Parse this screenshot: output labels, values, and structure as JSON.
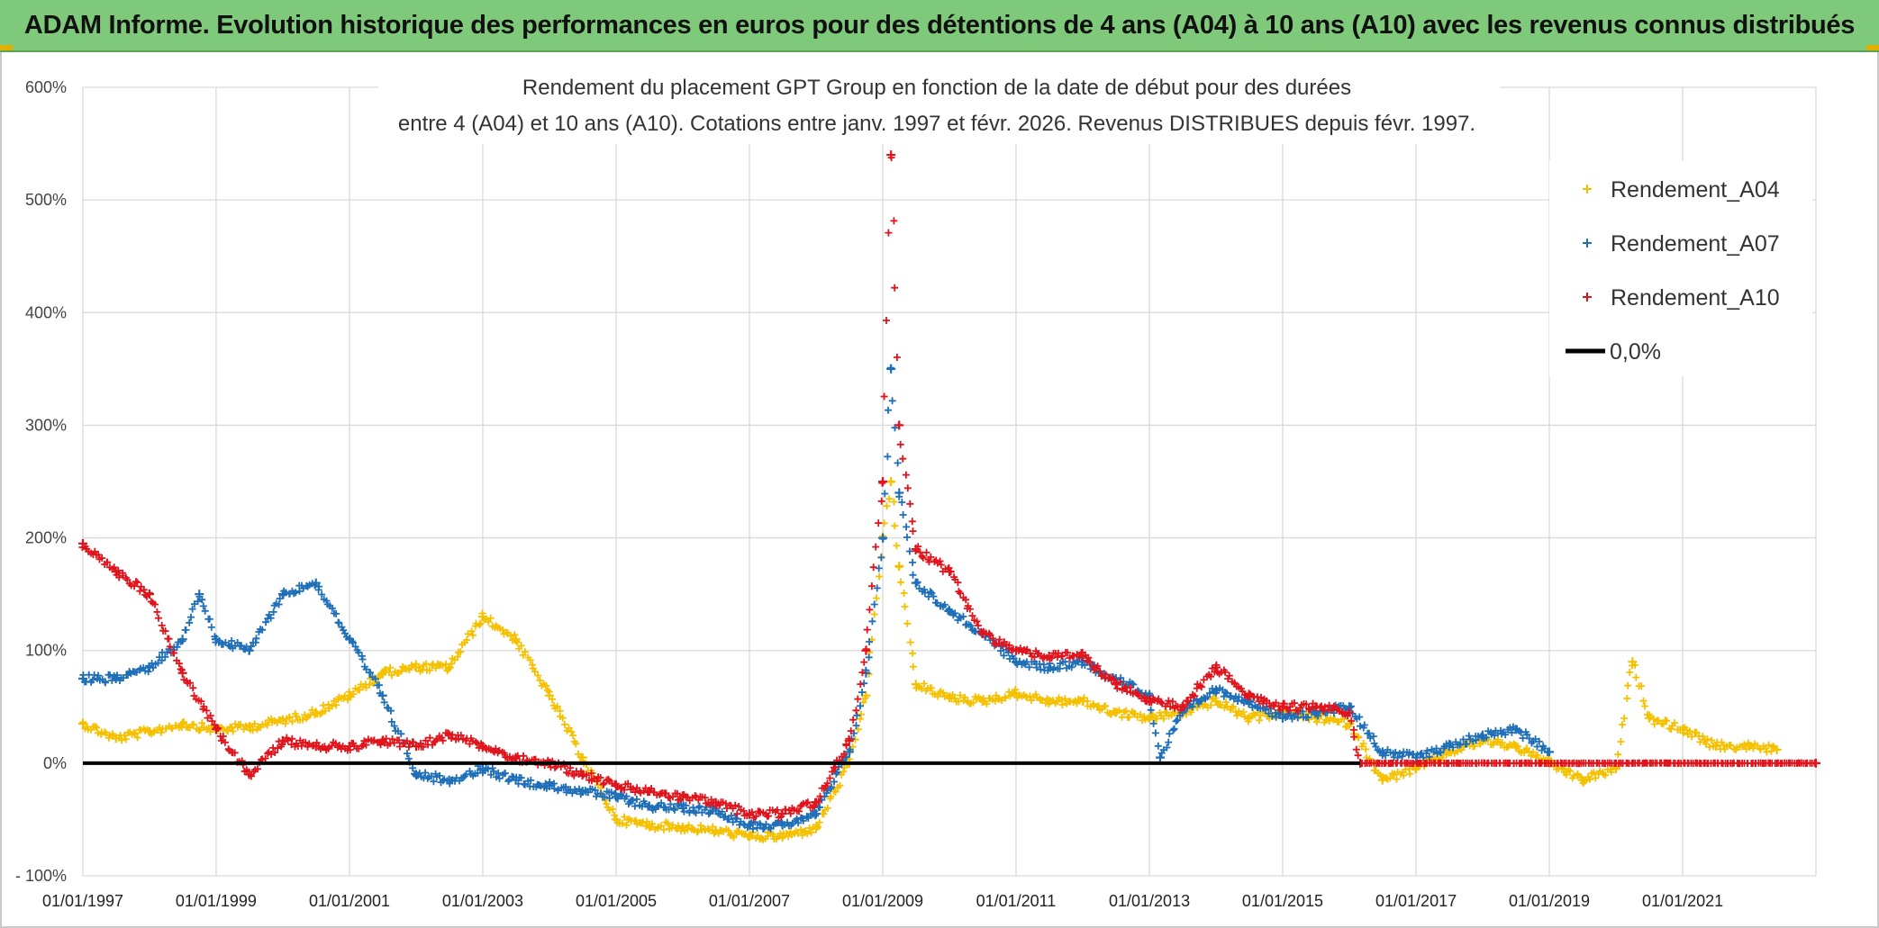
{
  "banner": {
    "text": "ADAM Informe. Evolution historique des performances en euros pour des détentions de 4 ans (A04) à 10 ans (A10) avec les revenus connus distribués"
  },
  "colors": {
    "A04": "#f5c000",
    "A07": "#1f6fb8",
    "A10": "#e0141c",
    "zero": "#000000",
    "grid": "#d9d9d9",
    "banner": "#7fc97a"
  },
  "chart_data": {
    "type": "scatter",
    "title_line1": "Rendement du placement GPT Group en fonction de la date de début pour des durées",
    "title_line2": "entre 4 (A04) et 10 ans (A10). Cotations entre janv. 1997 et févr. 2026. Revenus DISTRIBUES depuis févr. 1997.",
    "ylim": [
      -100,
      600
    ],
    "yticks": [
      -100,
      0,
      100,
      200,
      300,
      400,
      500,
      600
    ],
    "ytick_labels": [
      "- 100%",
      "0%",
      "100%",
      "200%",
      "300%",
      "400%",
      "500%",
      "600%"
    ],
    "xlim": [
      "1997-01-01",
      "2023-01-01"
    ],
    "xticks": [
      "1997-01-01",
      "1999-01-01",
      "2001-01-01",
      "2003-01-01",
      "2005-01-01",
      "2007-01-01",
      "2009-01-01",
      "2011-01-01",
      "2013-01-01",
      "2015-01-01",
      "2017-01-01",
      "2019-01-01",
      "2021-01-01"
    ],
    "xtick_labels": [
      "01/01/1997",
      "01/01/1999",
      "01/01/2001",
      "01/01/2003",
      "01/01/2005",
      "01/01/2007",
      "01/01/2009",
      "01/01/2011",
      "01/01/2013",
      "01/01/2015",
      "01/01/2017",
      "01/01/2019",
      "01/01/2021"
    ],
    "legend_position": "top-right",
    "grid": true,
    "series": [
      {
        "name": "Rendement_A04",
        "color": "#f5c000",
        "points": [
          [
            "1997-01-01",
            35
          ],
          [
            "1997-07-01",
            22
          ],
          [
            "1998-01-01",
            28
          ],
          [
            "1998-07-01",
            35
          ],
          [
            "1999-01-01",
            30
          ],
          [
            "1999-07-01",
            32
          ],
          [
            "2000-01-01",
            38
          ],
          [
            "2000-07-01",
            45
          ],
          [
            "2001-01-01",
            60
          ],
          [
            "2001-07-01",
            80
          ],
          [
            "2002-01-01",
            85
          ],
          [
            "2002-07-01",
            85
          ],
          [
            "2003-01-01",
            130
          ],
          [
            "2003-07-01",
            110
          ],
          [
            "2004-01-01",
            60
          ],
          [
            "2004-07-01",
            5
          ],
          [
            "2005-01-01",
            -50
          ],
          [
            "2005-07-01",
            -55
          ],
          [
            "2006-01-01",
            -57
          ],
          [
            "2006-07-01",
            -60
          ],
          [
            "2007-01-01",
            -65
          ],
          [
            "2007-07-01",
            -65
          ],
          [
            "2008-01-01",
            -58
          ],
          [
            "2008-07-01",
            0
          ],
          [
            "2008-10-01",
            60
          ],
          [
            "2009-01-01",
            200
          ],
          [
            "2009-02-15",
            250
          ],
          [
            "2009-04-01",
            175
          ],
          [
            "2009-07-01",
            70
          ],
          [
            "2010-01-01",
            58
          ],
          [
            "2010-07-01",
            55
          ],
          [
            "2011-01-01",
            62
          ],
          [
            "2011-07-01",
            55
          ],
          [
            "2012-01-01",
            55
          ],
          [
            "2012-07-01",
            45
          ],
          [
            "2013-01-01",
            40
          ],
          [
            "2013-07-01",
            45
          ],
          [
            "2014-01-01",
            55
          ],
          [
            "2014-07-01",
            40
          ],
          [
            "2015-01-01",
            45
          ],
          [
            "2015-07-01",
            40
          ],
          [
            "2016-01-01",
            35
          ],
          [
            "2016-07-01",
            -15
          ],
          [
            "2017-01-01",
            -5
          ],
          [
            "2017-07-01",
            10
          ],
          [
            "2018-01-01",
            20
          ],
          [
            "2018-07-01",
            15
          ],
          [
            "2019-01-01",
            0
          ],
          [
            "2019-07-01",
            -15
          ],
          [
            "2020-01-01",
            -5
          ],
          [
            "2020-04-01",
            90
          ],
          [
            "2020-07-01",
            40
          ],
          [
            "2021-01-01",
            30
          ],
          [
            "2021-07-01",
            15
          ],
          [
            "2022-01-01",
            15
          ],
          [
            "2022-06-01",
            12
          ]
        ]
      },
      {
        "name": "Rendement_A07",
        "color": "#1f6fb8",
        "points": [
          [
            "1997-01-01",
            75
          ],
          [
            "1997-07-01",
            75
          ],
          [
            "1998-01-01",
            85
          ],
          [
            "1998-07-01",
            110
          ],
          [
            "1998-10-01",
            150
          ],
          [
            "1999-01-01",
            110
          ],
          [
            "1999-07-01",
            100
          ],
          [
            "2000-01-01",
            150
          ],
          [
            "2000-07-01",
            160
          ],
          [
            "2001-01-01",
            110
          ],
          [
            "2001-07-01",
            60
          ],
          [
            "2002-01-01",
            -10
          ],
          [
            "2002-07-01",
            -15
          ],
          [
            "2003-01-01",
            -5
          ],
          [
            "2003-07-01",
            -15
          ],
          [
            "2004-01-01",
            -20
          ],
          [
            "2004-07-01",
            -25
          ],
          [
            "2005-01-01",
            -30
          ],
          [
            "2005-07-01",
            -38
          ],
          [
            "2006-01-01",
            -40
          ],
          [
            "2006-07-01",
            -42
          ],
          [
            "2007-01-01",
            -55
          ],
          [
            "2007-07-01",
            -55
          ],
          [
            "2008-01-01",
            -45
          ],
          [
            "2008-07-01",
            10
          ],
          [
            "2008-10-01",
            80
          ],
          [
            "2009-01-01",
            200
          ],
          [
            "2009-02-15",
            350
          ],
          [
            "2009-04-01",
            240
          ],
          [
            "2009-07-01",
            160
          ],
          [
            "2010-01-01",
            135
          ],
          [
            "2010-07-01",
            115
          ],
          [
            "2011-01-01",
            90
          ],
          [
            "2011-07-01",
            85
          ],
          [
            "2012-01-01",
            90
          ],
          [
            "2012-07-01",
            75
          ],
          [
            "2013-01-01",
            60
          ],
          [
            "2013-03-01",
            5
          ],
          [
            "2013-07-01",
            45
          ],
          [
            "2014-01-01",
            65
          ],
          [
            "2014-07-01",
            55
          ],
          [
            "2015-01-01",
            40
          ],
          [
            "2015-07-01",
            45
          ],
          [
            "2016-01-01",
            50
          ],
          [
            "2016-07-01",
            10
          ],
          [
            "2017-01-01",
            5
          ],
          [
            "2017-07-01",
            15
          ],
          [
            "2018-01-01",
            25
          ],
          [
            "2018-07-01",
            30
          ],
          [
            "2019-01-01",
            10
          ]
        ]
      },
      {
        "name": "Rendement_A10",
        "color": "#e0141c",
        "points": [
          [
            "1997-01-01",
            195
          ],
          [
            "1997-07-01",
            170
          ],
          [
            "1998-01-01",
            150
          ],
          [
            "1998-07-01",
            80
          ],
          [
            "1999-01-01",
            30
          ],
          [
            "1999-07-01",
            -10
          ],
          [
            "2000-01-01",
            20
          ],
          [
            "2000-07-01",
            15
          ],
          [
            "2001-01-01",
            15
          ],
          [
            "2001-07-01",
            20
          ],
          [
            "2002-01-01",
            15
          ],
          [
            "2002-07-01",
            25
          ],
          [
            "2003-01-01",
            15
          ],
          [
            "2003-07-01",
            5
          ],
          [
            "2004-01-01",
            0
          ],
          [
            "2004-07-01",
            -10
          ],
          [
            "2005-01-01",
            -20
          ],
          [
            "2005-07-01",
            -25
          ],
          [
            "2006-01-01",
            -30
          ],
          [
            "2006-07-01",
            -35
          ],
          [
            "2007-01-01",
            -45
          ],
          [
            "2007-07-01",
            -45
          ],
          [
            "2008-01-01",
            -35
          ],
          [
            "2008-07-01",
            20
          ],
          [
            "2008-10-01",
            100
          ],
          [
            "2009-01-01",
            250
          ],
          [
            "2009-02-15",
            540
          ],
          [
            "2009-04-01",
            300
          ],
          [
            "2009-07-01",
            190
          ],
          [
            "2010-01-01",
            170
          ],
          [
            "2010-07-01",
            115
          ],
          [
            "2011-01-01",
            100
          ],
          [
            "2011-07-01",
            95
          ],
          [
            "2012-01-01",
            95
          ],
          [
            "2012-07-01",
            70
          ],
          [
            "2013-01-01",
            55
          ],
          [
            "2013-07-01",
            50
          ],
          [
            "2014-01-01",
            85
          ],
          [
            "2014-07-01",
            60
          ],
          [
            "2015-01-01",
            50
          ],
          [
            "2015-07-01",
            50
          ],
          [
            "2016-01-01",
            45
          ],
          [
            "2016-03-01",
            0
          ],
          [
            "2023-01-01",
            0
          ]
        ]
      }
    ],
    "reference_line": {
      "name": "0,0%",
      "y": 0,
      "color": "#000000"
    }
  }
}
